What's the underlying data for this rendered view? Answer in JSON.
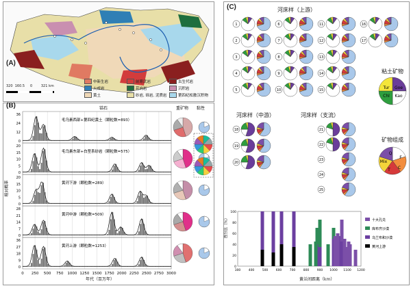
{
  "panels": {
    "a": "(A)",
    "b": "(B)",
    "c": "(C)"
  },
  "map": {
    "scale": "320  160.5     0        321 km",
    "legend": [
      "中新生岩",
      "前寒武岩",
      "古生代岩",
      "火成岩",
      "花岗岩",
      "沉积岩",
      "黄土",
      "砂岩, 砾岩, 泥质岩",
      "第四纪松散沉积物"
    ],
    "legend_colors": [
      "#e07a62",
      "#d23c3c",
      "#8a1f1f",
      "#2f7fb5",
      "#1e6e3e",
      "#c98fb0",
      "#f0d9b8",
      "#e8dfa8",
      "#a8d8ec"
    ]
  },
  "histogram": {
    "col_age": "锆石",
    "col_heavy": "重矿物",
    "col_clay": "黏性",
    "ylabel": "相对概率",
    "xlabel": "年代（百万年）",
    "xticks": [
      "0",
      "250",
      "500",
      "750",
      "1000",
      "1250",
      "1500",
      "1750",
      "2000",
      "2250",
      "2500",
      "2750",
      "3000"
    ],
    "rows": [
      {
        "label": "毛乌素西部+第四纪黄土（颗粒数=893）",
        "yticks": [
          "36",
          "24",
          "12",
          "0"
        ]
      },
      {
        "label": "毛乌素东部+白垩系砂岩（颗粒数=575）",
        "yticks": [
          "20",
          "15",
          "10",
          "5",
          "0"
        ]
      },
      {
        "label": "黄河下游（颗粒数=289）",
        "yticks": [
          "20",
          "15",
          "10",
          "5",
          "0"
        ]
      },
      {
        "label": "黄河中游（颗粒数=509）",
        "yticks": [
          "28",
          "21",
          "14",
          "7",
          "0"
        ]
      },
      {
        "label": "黄河上游（颗粒数=1253）",
        "yticks": [
          "36",
          "27",
          "18",
          "9",
          "0"
        ]
      }
    ]
  },
  "clay_panel": {
    "title_upper": "河床样（上游）",
    "title_middle": "河床样（中游）",
    "title_trib": "河床样（支流）",
    "clay_title": "粘土矿物",
    "clay_legend": {
      "tur": "Tur",
      "goe": "Goe",
      "chl": "Chl",
      "kao": "Kao"
    },
    "mineral_title": "矿物组成",
    "mineral_legend": {
      "q": "Q",
      "f": "F",
      "c": "C",
      "t": "T",
      "mix": "Mix"
    },
    "upper_ids": [
      "1",
      "2",
      "3",
      "4",
      "5",
      "6",
      "7",
      "8",
      "9",
      "10",
      "11",
      "12",
      "13",
      "14",
      "15",
      "16",
      "17"
    ],
    "middle_ids": [
      "18",
      "19",
      "20"
    ],
    "trib_ids": [
      "21",
      "22",
      "23",
      "24",
      "25"
    ]
  },
  "bar_chart": {
    "ylabel": "百分比（%）",
    "xlabel": "黄兰间距离（km）",
    "xticks": [
      "300",
      "400",
      "500",
      "600",
      "700",
      "800",
      "900",
      "1000",
      "1100",
      "1200"
    ],
    "yticks": [
      "100",
      "80",
      "60",
      "40",
      "20",
      "0"
    ],
    "legend": [
      "十大孔兑",
      "库布齐沙漠",
      "乌兰布和沙漠",
      "黄河上游"
    ],
    "legend_colors": [
      "#7b4fa8",
      "#2e8b57",
      "#6b3fa0",
      "#000000"
    ]
  },
  "chart_data": {
    "type": "bar",
    "xlabel": "黄兰间距离（km）",
    "ylabel": "百分比（%）",
    "ylim": [
      0,
      100
    ],
    "series": [
      {
        "name": "十大孔兑",
        "x": [
          1010,
          1030,
          1060,
          1080,
          1100,
          1110,
          1120,
          1160
        ],
        "values": [
          55,
          60,
          40,
          50,
          35,
          45,
          40,
          30
        ]
      },
      {
        "name": "库布齐沙漠",
        "x": [
          830,
          870,
          880,
          900,
          960,
          1000
        ],
        "values": [
          40,
          45,
          30,
          50,
          40,
          20
        ]
      },
      {
        "name": "乌兰布和沙漠",
        "x": [
          480,
          560,
          620,
          710,
          880,
          900,
          1000,
          1040,
          1060
        ],
        "values": [
          70,
          75,
          60,
          65,
          40,
          35,
          50,
          55,
          45
        ]
      },
      {
        "name": "黄河上游",
        "x": [
          480,
          560,
          620,
          710
        ],
        "values": [
          30,
          25,
          40,
          35
        ]
      }
    ]
  }
}
